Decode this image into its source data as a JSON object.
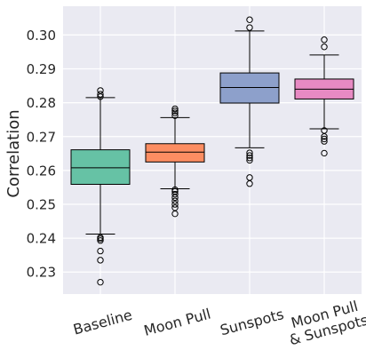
{
  "chart_data": {
    "type": "box",
    "title": "",
    "xlabel": "",
    "ylabel": "Correlation",
    "ylim": [
      0.2235,
      0.3085
    ],
    "yticks": [
      "0.23",
      "0.24",
      "0.25",
      "0.26",
      "0.27",
      "0.28",
      "0.29",
      "0.30"
    ],
    "grid": true,
    "categories": [
      {
        "label": [
          "Baseline"
        ]
      },
      {
        "label": [
          "Moon Pull"
        ]
      },
      {
        "label": [
          "Sunspots"
        ]
      },
      {
        "label": [
          "Moon Pull",
          "& Sunspots"
        ]
      }
    ],
    "series": [
      {
        "color": "#66c2a5",
        "whisker_low": 0.2412,
        "q1": 0.2559,
        "median": 0.2608,
        "q3": 0.2661,
        "whisker_high": 0.2815,
        "outliers": [
          0.227,
          0.2335,
          0.2362,
          0.2393,
          0.2398,
          0.2402,
          0.2818,
          0.2825,
          0.2836
        ]
      },
      {
        "color": "#fc8d62",
        "whisker_low": 0.2546,
        "q1": 0.2625,
        "median": 0.2654,
        "q3": 0.2679,
        "whisker_high": 0.2756,
        "outliers": [
          0.2472,
          0.249,
          0.25,
          0.251,
          0.252,
          0.253,
          0.2538,
          0.2543,
          0.2762,
          0.277,
          0.2776,
          0.2782
        ]
      },
      {
        "color": "#8da0cb",
        "whisker_low": 0.2667,
        "q1": 0.2799,
        "median": 0.2845,
        "q3": 0.2888,
        "whisker_high": 0.3012,
        "outliers": [
          0.2561,
          0.2579,
          0.263,
          0.2637,
          0.2644,
          0.2652,
          0.3022,
          0.3045
        ]
      },
      {
        "color": "#e78ac3",
        "whisker_low": 0.2723,
        "q1": 0.2811,
        "median": 0.284,
        "q3": 0.287,
        "whisker_high": 0.2941,
        "outliers": [
          0.2651,
          0.2686,
          0.2693,
          0.27,
          0.2718,
          0.2965,
          0.2986
        ]
      }
    ]
  }
}
